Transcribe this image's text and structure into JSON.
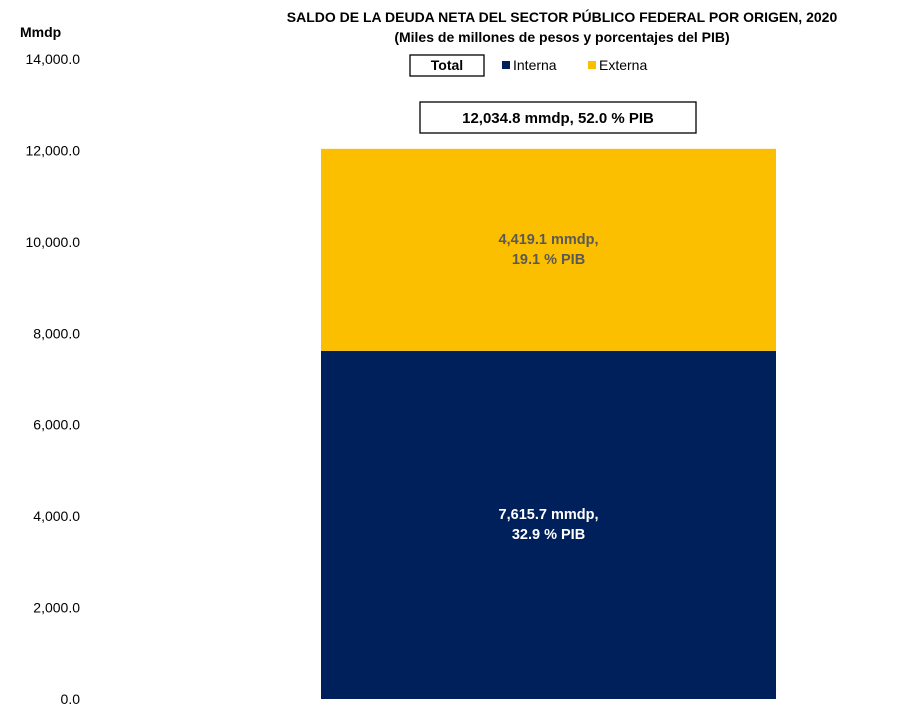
{
  "chart_data": {
    "type": "bar",
    "stacked": true,
    "title": "SALDO DE LA DEUDA NETA DEL SECTOR PÚBLICO FEDERAL POR ORIGEN, 2020",
    "subtitle": "(Miles de millones de pesos y porcentajes del PIB)",
    "unit_label": "Mmdp",
    "ylim": [
      0,
      14000
    ],
    "yticks": [
      "0.0",
      "2,000.0",
      "4,000.0",
      "6,000.0",
      "8,000.0",
      "10,000.0",
      "12,000.0",
      "14,000.0"
    ],
    "ytick_values": [
      0,
      2000,
      4000,
      6000,
      8000,
      10000,
      12000,
      14000
    ],
    "grid": false,
    "legend_position": "top-center",
    "legend": {
      "total_label": "Total",
      "items": [
        {
          "name": "Interna",
          "color": "#00205b"
        },
        {
          "name": "Externa",
          "color": "#fcbf00"
        }
      ]
    },
    "series": [
      {
        "name": "Interna",
        "values": [
          7615.7
        ],
        "color": "#00205b",
        "label_line1": "7,615.7 mmdp,",
        "label_line2": "32.9 %  PIB",
        "label_color": "#ffffff"
      },
      {
        "name": "Externa",
        "values": [
          4419.1
        ],
        "color": "#fcbf00",
        "label_line1": "4,419.1 mmdp,",
        "label_line2": "19.1 %  PIB",
        "label_color": "#595959"
      }
    ],
    "total": {
      "value": 12034.8,
      "label": "12,034.8 mmdp,  52.0 %  PIB"
    }
  }
}
